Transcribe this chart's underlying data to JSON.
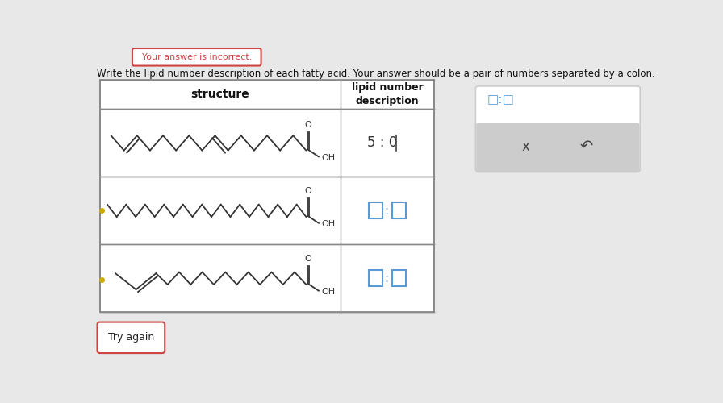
{
  "page_bg": "#e8e8e8",
  "title_text": "Write the lipid number description of each fatty acid. Your answer should be a pair of numbers separated by a colon.",
  "header_incorrect": "Your answer is incorrect.",
  "col1_header": "structure",
  "col2_header": "lipid number\ndescription",
  "input_box_label": "□:□",
  "row1_answer": "5 : 0",
  "row2_answer": "□:□",
  "row3_answer": "□:□",
  "try_again": "Try again",
  "x_symbol": "x",
  "undo_symbol": "↶",
  "table_border_color": "#888888",
  "cell_bg": "#ffffff",
  "input_box_color": "#5b9bd5",
  "answer_text_color": "#333333",
  "incorrect_banner_bg": "#ffffff",
  "incorrect_banner_border": "#cc4444",
  "incorrect_text_color": "#cc4444",
  "try_again_border": "#cc4444",
  "gray_box_bg": "#cccccc",
  "right_panel_bg": "#ffffff",
  "right_panel_border": "#cccccc"
}
